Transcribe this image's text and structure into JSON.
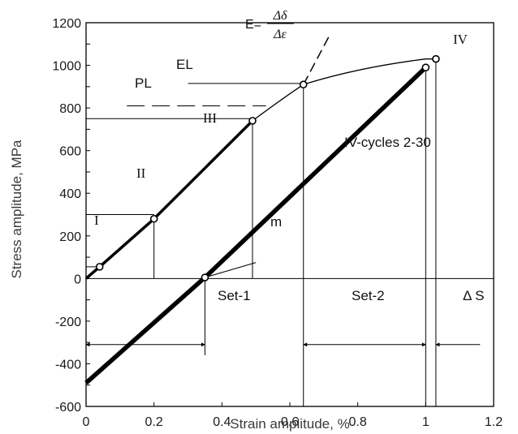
{
  "chart_data": {
    "type": "line",
    "xlabel": "Strain amplitude, %",
    "ylabel": "Stress amplitude, MPa",
    "xlim": [
      0,
      1.2
    ],
    "ylim": [
      -600,
      1200
    ],
    "x_ticks": [
      "0",
      "0.2",
      "0.4",
      "0.6",
      "0.8",
      "1",
      "1.2"
    ],
    "y_ticks": [
      "-600",
      "-500",
      "-400",
      "-300",
      "-200",
      "-100",
      "0",
      "100",
      "200",
      "300",
      "400",
      "500",
      "600",
      "700",
      "800",
      "900",
      "1000",
      "1100",
      "1200"
    ],
    "y_tick_labels": [
      "-600",
      "-400",
      "-200",
      "0",
      "200",
      "400",
      "600",
      "800",
      "1000",
      "1200"
    ],
    "grid": false,
    "curves": {
      "loading": {
        "x": [
          0,
          0.04,
          0.2,
          0.49,
          0.64,
          0.8,
          0.9,
          1.0,
          1.03
        ],
        "y": [
          0,
          55,
          280,
          740,
          910,
          990,
          1020,
          1030,
          1030
        ]
      },
      "elastic_extension": {
        "x": [
          0.64,
          0.72
        ],
        "y": [
          910,
          1150
        ]
      },
      "cycles": {
        "x": [
          0,
          0.35,
          1.0
        ],
        "y": [
          -490,
          5,
          990
        ]
      }
    },
    "points": [
      {
        "x": 0.04,
        "y": 55
      },
      {
        "x": 0.2,
        "y": 280
      },
      {
        "x": 0.49,
        "y": 740
      },
      {
        "x": 0.64,
        "y": 910
      },
      {
        "x": 1.0,
        "y": 990
      },
      {
        "x": 1.03,
        "y": 1030
      },
      {
        "x": 0.35,
        "y": 5
      }
    ],
    "annotations": {
      "I": "I",
      "II": "II",
      "III": "III",
      "IV": "IV",
      "PL": "PL",
      "EL": "EL",
      "E_prefix": "E=",
      "E_numerator": "Δδ",
      "E_denominator": "Δε",
      "m": "m",
      "cycles_label": "IV-cycles 2-30",
      "set1": "Set-1",
      "set2": "Set-2",
      "deltaS": "Δ S"
    }
  }
}
